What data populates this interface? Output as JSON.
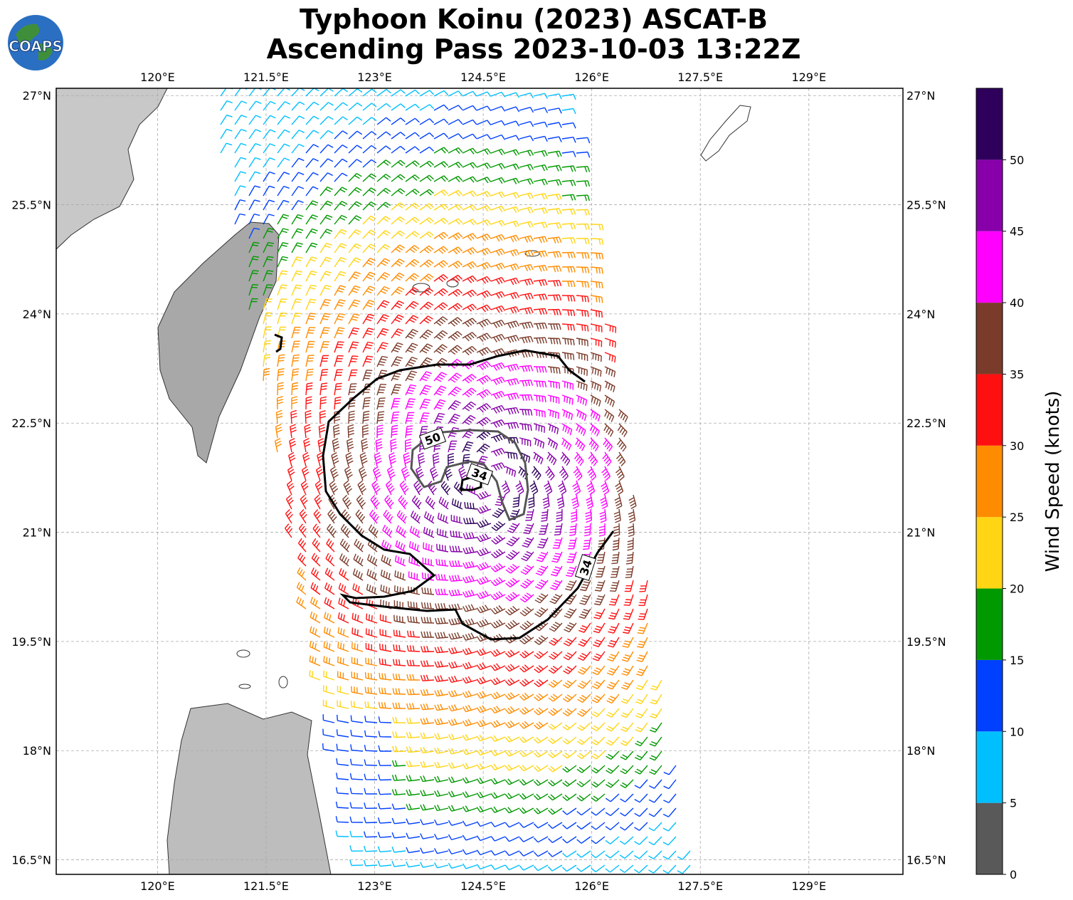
{
  "title": {
    "line1": "Typhoon Koinu (2023) ASCAT-B",
    "line2": "Ascending Pass 2023-10-03 13:22Z"
  },
  "logo": {
    "text": "COAPS",
    "icon": "globe-icon"
  },
  "map": {
    "lon_range": [
      118.6,
      130.3
    ],
    "lat_range": [
      16.3,
      27.1
    ],
    "lon_ticks": [
      "120°E",
      "121.5°E",
      "123°E",
      "124.5°E",
      "126°E",
      "127.5°E",
      "129°E"
    ],
    "lon_values": [
      120,
      121.5,
      123,
      124.5,
      126,
      127.5,
      129
    ],
    "lat_ticks": [
      "27°N",
      "25.5°N",
      "24°N",
      "22.5°N",
      "21°N",
      "19.5°N",
      "18°N",
      "16.5°N"
    ],
    "lat_values": [
      27,
      25.5,
      24,
      22.5,
      21,
      19.5,
      18,
      16.5
    ],
    "storm_center": {
      "lon": 124.6,
      "lat": 21.7
    },
    "contour_labels": {
      "outer_34": "34",
      "inner_50": "50",
      "inner_34": "34"
    },
    "grid": true
  },
  "colorbar": {
    "label": "Wind Speed (knots)",
    "ticks": [
      "0",
      "5",
      "10",
      "15",
      "20",
      "25",
      "30",
      "35",
      "40",
      "45",
      "50"
    ],
    "bins": [
      {
        "min": 0,
        "max": 5,
        "color": "#595959"
      },
      {
        "min": 5,
        "max": 10,
        "color": "#00BFFF"
      },
      {
        "min": 10,
        "max": 15,
        "color": "#0040FF"
      },
      {
        "min": 15,
        "max": 20,
        "color": "#009900"
      },
      {
        "min": 20,
        "max": 25,
        "color": "#FFD514"
      },
      {
        "min": 25,
        "max": 30,
        "color": "#FF8C00"
      },
      {
        "min": 30,
        "max": 35,
        "color": "#FF1010"
      },
      {
        "min": 35,
        "max": 40,
        "color": "#7B3B2A"
      },
      {
        "min": 40,
        "max": 45,
        "color": "#FF00FF"
      },
      {
        "min": 45,
        "max": 50,
        "color": "#8800AA"
      },
      {
        "min": 50,
        "max": 55,
        "color": "#2E005C"
      }
    ]
  }
}
